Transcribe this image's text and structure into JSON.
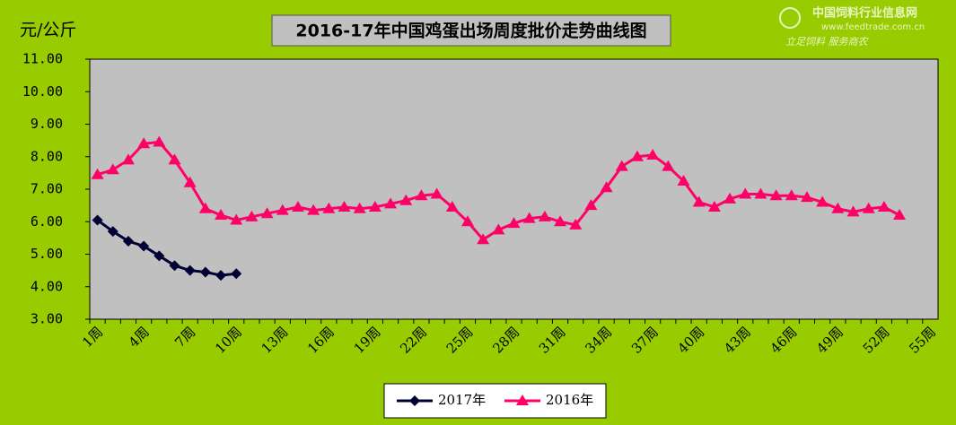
{
  "chart_data": {
    "type": "line",
    "title": "2016-17年中国鸡蛋出场周度批价走势曲线图",
    "y_label": "元/公斤",
    "watermark": [
      "中国饲料行业信息网",
      "www.feedtrade.com.cn",
      "立足饲料  服务商农"
    ],
    "categories": [
      "1周",
      null,
      null,
      "4周",
      null,
      null,
      "7周",
      null,
      null,
      "10周",
      null,
      null,
      "13周",
      null,
      null,
      "16周",
      null,
      null,
      "19周",
      null,
      null,
      "22周",
      null,
      null,
      "25周",
      null,
      null,
      "28周",
      null,
      null,
      "31周",
      null,
      null,
      "34周",
      null,
      null,
      "37周",
      null,
      null,
      "40周",
      null,
      null,
      "43周",
      null,
      null,
      "46周",
      null,
      null,
      "49周",
      null,
      null,
      "52周",
      null,
      null,
      "55周"
    ],
    "series": [
      {
        "name": "2017年",
        "color": "#000033",
        "marker": "diamond",
        "values": [
          6.05,
          5.7,
          5.4,
          5.25,
          4.95,
          4.65,
          4.5,
          4.45,
          4.35,
          4.4,
          null,
          null,
          null,
          null,
          null,
          null,
          null,
          null,
          null,
          null,
          null,
          null,
          null,
          null,
          null,
          null,
          null,
          null,
          null,
          null,
          null,
          null,
          null,
          null,
          null,
          null,
          null,
          null,
          null,
          null,
          null,
          null,
          null,
          null,
          null,
          null,
          null,
          null,
          null,
          null,
          null,
          null,
          null,
          null,
          null
        ]
      },
      {
        "name": "2016年",
        "color": "#ff0066",
        "marker": "triangle",
        "values": [
          7.45,
          7.6,
          7.9,
          8.4,
          8.45,
          7.9,
          7.2,
          6.4,
          6.2,
          6.05,
          6.15,
          6.25,
          6.35,
          6.45,
          6.35,
          6.4,
          6.45,
          6.4,
          6.45,
          6.55,
          6.65,
          6.8,
          6.85,
          6.45,
          6.0,
          5.45,
          5.75,
          5.95,
          6.1,
          6.15,
          6.0,
          5.9,
          6.5,
          7.05,
          7.7,
          8.0,
          8.05,
          7.7,
          7.25,
          6.6,
          6.45,
          6.7,
          6.85,
          6.85,
          6.8,
          6.8,
          6.75,
          6.6,
          6.4,
          6.3,
          6.4,
          6.45,
          6.2,
          null,
          null
        ]
      }
    ],
    "ylim": [
      3,
      11
    ],
    "yticks": [
      {
        "value": 3,
        "label": "3.00"
      },
      {
        "value": 4,
        "label": "4.00"
      },
      {
        "value": 5,
        "label": "5.00"
      },
      {
        "value": 6,
        "label": "6.00"
      },
      {
        "value": 7,
        "label": "7.00"
      },
      {
        "value": 8,
        "label": "8.00"
      },
      {
        "value": 9,
        "label": "9.00"
      },
      {
        "value": 10,
        "label": "10.00"
      },
      {
        "value": 11,
        "label": "11.00"
      }
    ],
    "grid": false,
    "legend": "bottom",
    "background": "#99cc00",
    "plot_background": "#c0c0c0"
  }
}
